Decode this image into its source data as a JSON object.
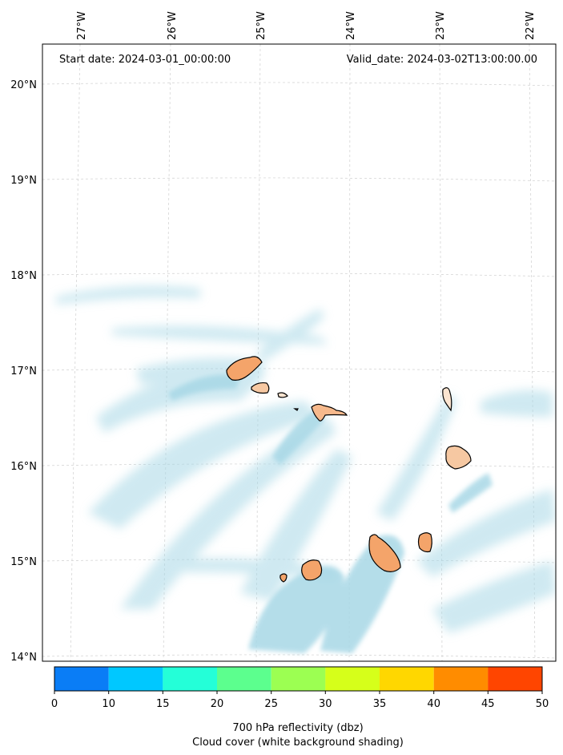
{
  "header": {
    "start_date": "Start date: 2024-03-01_00:00:00",
    "valid_date": "Valid_date: 2024-03-02T13:00:00.00"
  },
  "axes": {
    "lon_labels": [
      "27°W",
      "26°W",
      "25°W",
      "24°W",
      "23°W",
      "22°W"
    ],
    "lat_labels": [
      "20°N",
      "19°N",
      "18°N",
      "17°N",
      "16°N",
      "15°N",
      "14°N"
    ]
  },
  "colorbar": {
    "ticks": [
      "0",
      "10",
      "15",
      "20",
      "25",
      "30",
      "35",
      "40",
      "45",
      "50"
    ],
    "colors": [
      "#0a7df6",
      "#00c8ff",
      "#24ffd8",
      "#5cff8e",
      "#9cff52",
      "#d6ff1a",
      "#ffd700",
      "#ff8c00",
      "#ff4500"
    ],
    "label_line1": "700 hPa reflectivity (dbz)",
    "label_line2": "Cloud cover (white background shading)"
  },
  "shading": {
    "cloud_color": "#a8d8e6",
    "land_color": "#f4a46a",
    "coast_color": "#000000"
  }
}
